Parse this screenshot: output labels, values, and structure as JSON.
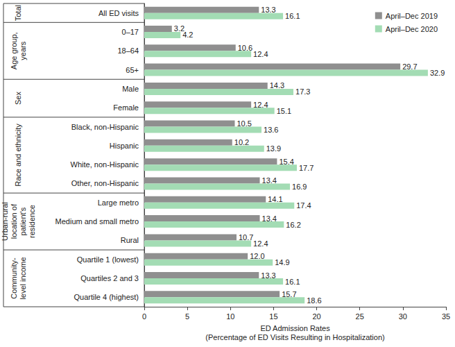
{
  "chart_data": {
    "type": "bar",
    "orientation": "horizontal",
    "categories": [
      "All ED visits",
      "0–17",
      "18–64",
      "65+",
      "Male",
      "Female",
      "Black, non-Hispanic",
      "Hispanic",
      "White, non-Hispanic",
      "Other, non-Hispanic",
      "Large metro",
      "Medium and small metro",
      "Rural",
      "Quartile 1 (lowest)",
      "Quartiles 2 and 3",
      "Quartile 4 (highest)"
    ],
    "groups": [
      {
        "name": "Total",
        "members": [
          "All ED visits"
        ]
      },
      {
        "name": "Age group,\nyears",
        "members": [
          "0–17",
          "18–64",
          "65+"
        ]
      },
      {
        "name": "Sex",
        "members": [
          "Male",
          "Female"
        ]
      },
      {
        "name": "Race and ethnicity",
        "members": [
          "Black, non-Hispanic",
          "Hispanic",
          "White, non-Hispanic",
          "Other, non-Hispanic"
        ]
      },
      {
        "name": "Urban-rural\nlocation of\npatient's\nresidence",
        "members": [
          "Large metro",
          "Medium and small metro",
          "Rural"
        ]
      },
      {
        "name": "Community-\nlevel income",
        "members": [
          "Quartile 1 (lowest)",
          "Quartiles 2 and 3",
          "Quartile 4 (highest)"
        ]
      }
    ],
    "series": [
      {
        "name": "April–Dec 2019",
        "color": "#8f8f8f",
        "values": [
          13.3,
          3.2,
          10.6,
          29.7,
          14.3,
          12.4,
          10.5,
          10.2,
          15.4,
          13.4,
          14.1,
          13.4,
          10.7,
          12.0,
          13.3,
          15.7
        ],
        "value_labels": [
          "13.3",
          "3.2",
          "10.6",
          "29.7",
          "14.3",
          "12.4",
          "10.5",
          "10.2",
          "15.4",
          "13.4",
          "14.1",
          "13.4",
          "10.7",
          "12.0",
          "13.3",
          "15.7"
        ]
      },
      {
        "name": "April–Dec 2020",
        "color": "#a3dcb4",
        "values": [
          16.1,
          4.2,
          12.4,
          32.9,
          17.3,
          15.1,
          13.6,
          13.9,
          17.7,
          16.9,
          17.4,
          16.2,
          12.4,
          14.9,
          16.1,
          18.6
        ],
        "value_labels": [
          "16.1",
          "4.2",
          "12.4",
          "32.9",
          "17.3",
          "15.1",
          "13.6",
          "13.9",
          "17.7",
          "16.9",
          "17.4",
          "16.2",
          "12.4",
          "14.9",
          "16.1",
          "18.6"
        ]
      }
    ],
    "xlabel": "ED Admission Rates\n(Percentage of ED Visits Resulting in Hospitalization)",
    "xlim": [
      0,
      35
    ],
    "xticks": [
      0,
      5,
      10,
      15,
      20,
      25,
      30,
      35
    ],
    "data_labels": true,
    "legend": "top-right",
    "grid": false
  }
}
